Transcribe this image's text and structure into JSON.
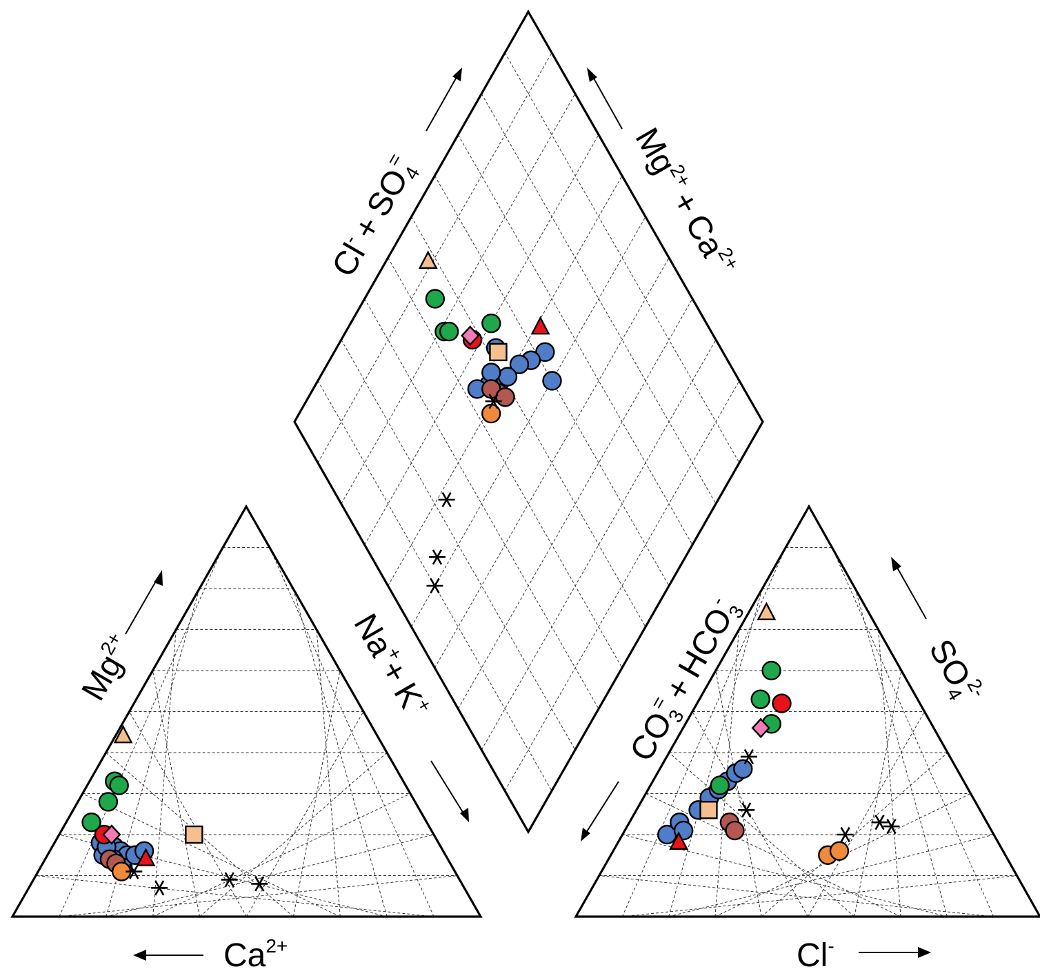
{
  "chart_data": {
    "type": "scatter",
    "subtype": "piper-trilinear",
    "title": "",
    "axis_labels": {
      "cation_mg": "Mg2+",
      "cation_ca": "Ca2+",
      "cation_nak": "Na+ + K+",
      "anion_so4": "SO42-",
      "anion_cl": "Cl-",
      "anion_co3hco3": "CO3= + HCO3-",
      "diamond_left": "Cl- + SO4=",
      "diamond_right": "Mg2+ + Ca2+"
    },
    "label_text": {
      "mg": {
        "base": "Mg",
        "sup": "2+"
      },
      "ca": {
        "base": "Ca",
        "sup": "2+"
      },
      "na": {
        "base": "Na",
        "sup": "+"
      },
      "plus": "+",
      "k": {
        "base": "K",
        "sup": "+"
      },
      "so4": {
        "base": "SO",
        "sub": "4",
        "sup": "2-"
      },
      "cl": {
        "base": "Cl",
        "sup": "-"
      },
      "co3": {
        "base": "CO",
        "sub": "3",
        "sup": "="
      },
      "hco3": {
        "base": "HCO",
        "sub": "3",
        "sup": "-"
      },
      "diamond_cl": {
        "base": "Cl",
        "sup": "-"
      },
      "diamond_so4": {
        "base": "SO",
        "sub": "4",
        "sup": "="
      },
      "diamond_mg": {
        "base": "Mg",
        "sup": "2+"
      },
      "diamond_ca": {
        "base": "Ca",
        "sup": "2+"
      }
    },
    "grid": true,
    "legend": "none",
    "colors": {
      "blue": "#4f7dc7",
      "red": "#e8121a",
      "green": "#1fa84b",
      "brown": "#b25752",
      "orange": "#ef8a3c",
      "peach": "#f6c08e",
      "pink": "#f27ab6",
      "black": "#000000"
    },
    "series": [
      {
        "marker": "circle",
        "color": "blue",
        "cation": [
          [
            12,
            18
          ],
          [
            14,
            15
          ],
          [
            16,
            17
          ],
          [
            18,
            16
          ],
          [
            20,
            15
          ],
          [
            17,
            14
          ],
          [
            14,
            17
          ],
          [
            20,
            12
          ],
          [
            22,
            15
          ],
          [
            24,
            16
          ]
        ],
        "anion": [
          [
            12,
            20
          ],
          [
            14,
            23
          ],
          [
            16,
            21
          ],
          [
            18,
            26
          ],
          [
            20,
            29
          ],
          [
            22,
            31
          ],
          [
            24,
            33
          ],
          [
            26,
            35
          ],
          [
            28,
            36
          ]
        ],
        "diamond": [
          [
            55,
            62
          ],
          [
            57,
            58
          ],
          [
            59,
            55
          ],
          [
            61,
            49
          ],
          [
            63,
            46
          ],
          [
            65,
            43
          ],
          [
            60,
            51
          ],
          [
            64,
            48
          ],
          [
            66,
            52
          ],
          [
            50,
            60
          ]
        ]
      },
      {
        "marker": "circle",
        "color": "red",
        "cation": [
          [
            12,
            20
          ]
        ],
        "anion": [
          [
            38,
            52
          ]
        ],
        "diamond": [
          [
            72,
            48
          ]
        ]
      },
      {
        "marker": "circle",
        "color": "green",
        "cation": [
          [
            8,
            33
          ],
          [
            10,
            32
          ],
          [
            9,
            28
          ],
          [
            7,
            23
          ]
        ],
        "anion": [
          [
            30,
            60
          ],
          [
            28,
            53
          ],
          [
            35,
            47
          ],
          [
            22,
            32
          ]
        ],
        "diamond": [
          [
            85,
            45
          ],
          [
            79,
            43
          ],
          [
            78,
            44
          ],
          [
            70,
            54
          ]
        ]
      },
      {
        "marker": "circle",
        "color": "brown",
        "cation": [
          [
            16,
            14
          ],
          [
            18,
            13
          ]
        ],
        "anion": [
          [
            28,
            23
          ],
          [
            30,
            21
          ]
        ],
        "diamond": [
          [
            60,
            47
          ],
          [
            62,
            46
          ],
          [
            58,
            48
          ]
        ]
      },
      {
        "marker": "circle",
        "color": "orange",
        "cation": [
          [
            20,
            11
          ]
        ],
        "anion": [
          [
            55,
            15
          ],
          [
            58,
            16
          ]
        ],
        "diamond": [
          [
            59,
            43
          ]
        ]
      },
      {
        "marker": "triangle",
        "color": "peach",
        "cation": [
          [
            3,
            44
          ]
        ],
        "anion": [
          [
            15,
            74
          ]
        ],
        "diamond": [
          [
            91,
            48
          ]
        ]
      },
      {
        "marker": "triangle",
        "color": "red",
        "cation": [
          [
            25,
            14
          ]
        ],
        "anion": [
          [
            16,
            18
          ]
        ],
        "diamond": [
          [
            59,
            64
          ]
        ]
      },
      {
        "marker": "square",
        "color": "peach",
        "cation": [
          [
            36,
            20
          ]
        ],
        "anion": [
          [
            21,
            26
          ]
        ],
        "diamond": [
          [
            65,
            52
          ]
        ]
      },
      {
        "marker": "diamond",
        "color": "pink",
        "cation": [
          [
            14,
            20
          ]
        ],
        "anion": [
          [
            31,
            46
          ]
        ],
        "diamond": [
          [
            73,
            48
          ]
        ]
      },
      {
        "marker": "star",
        "color": "black",
        "cation": [
          [
            30,
            7
          ],
          [
            46,
            9
          ],
          [
            53,
            8
          ],
          [
            23,
            11
          ]
        ],
        "anion": [
          [
            60,
            20
          ],
          [
            70,
            23
          ],
          [
            73,
            22
          ],
          [
            29,
            39
          ],
          [
            32,
            26
          ]
        ],
        "diamond": [
          [
            58,
            23
          ],
          [
            53,
            14
          ],
          [
            50,
            10
          ],
          [
            60,
            45
          ]
        ]
      }
    ]
  }
}
